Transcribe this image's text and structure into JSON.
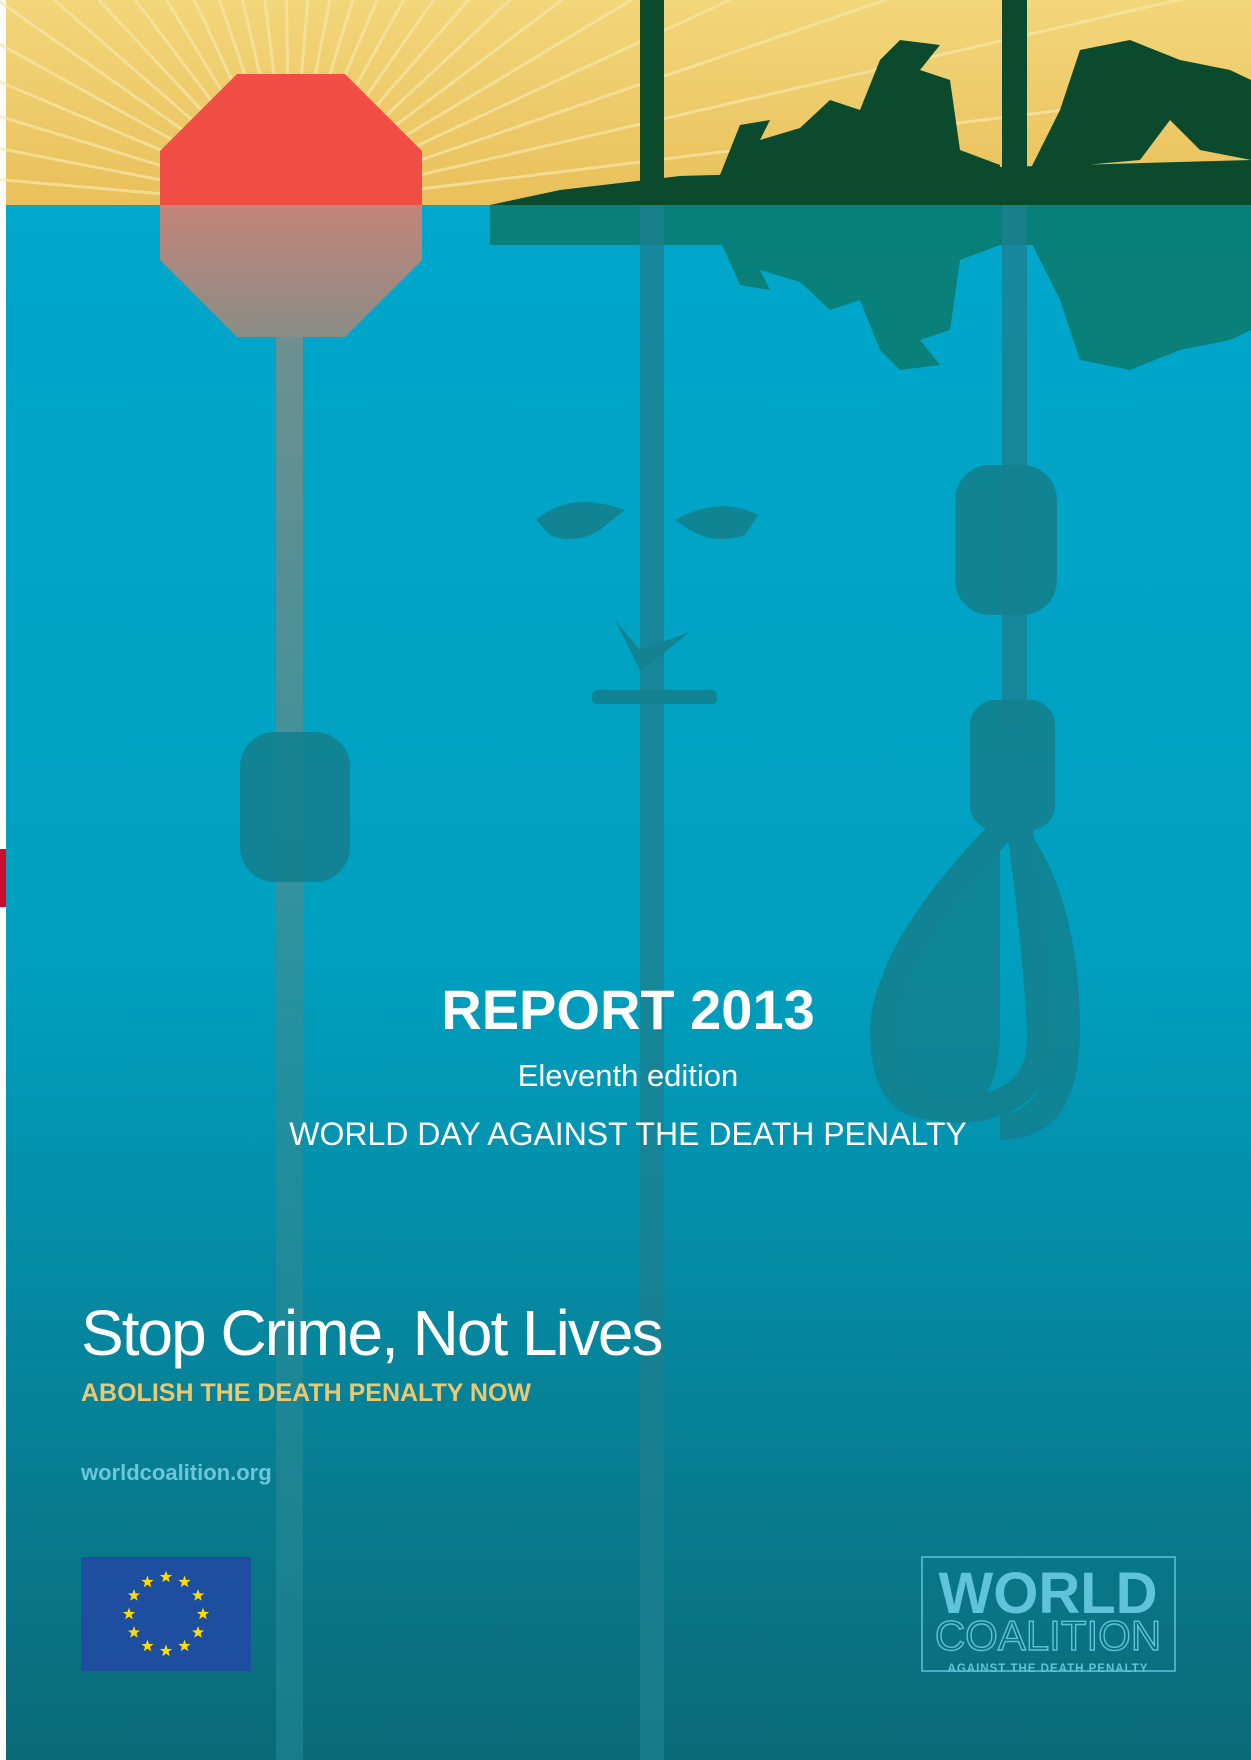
{
  "cover": {
    "title": "REPORT 2013",
    "edition": "Eleventh edition",
    "subtitle": "WORLD DAY AGAINST THE DEATH PENALTY",
    "slogan": "Stop Crime, Not Lives",
    "tagline": "ABOLISH THE DEATH PENALTY NOW",
    "url": "worldcoalition.org"
  },
  "logo": {
    "line1": "WORLD",
    "line2": "COALITION",
    "line3": "AGAINST THE DEATH PENALTY"
  }
}
